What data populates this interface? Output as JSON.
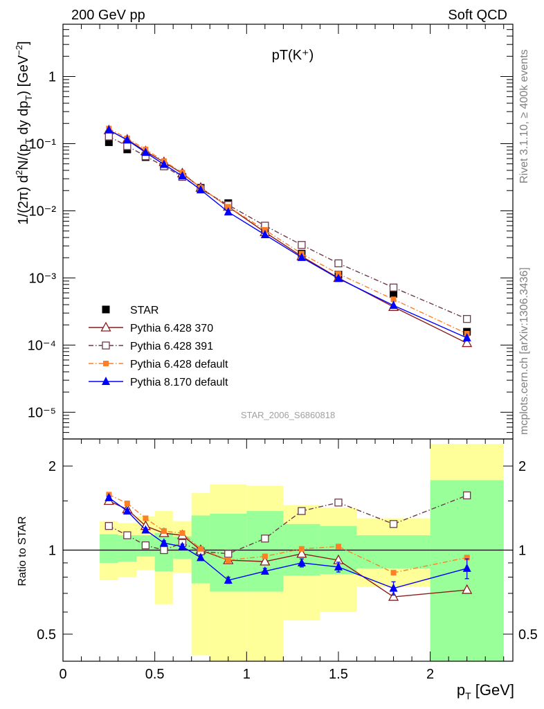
{
  "header": {
    "left": "200 GeV pp",
    "right": "Soft QCD"
  },
  "side": {
    "rivet": "Rivet 3.1.10, ≥ 400k events",
    "mcplots": "mcplots.cern.ch [arXiv:1306.3436]"
  },
  "colors": {
    "star": "#000000",
    "p370": "#8b1a1a",
    "p391": "#6b3a4a",
    "p6def": "#ff7f24",
    "p8def": "#0000ff",
    "band_yellow": "#ffff99",
    "band_green": "#99ff99"
  },
  "chart_data": [
    {
      "type": "scatter",
      "title": "pT(K⁺)",
      "watermark": "STAR_2006_S6860818",
      "ylabel": "1/(2π) d²N/(p_T dy dp_T) [GeV⁻²]",
      "yscale": "log",
      "ylim": [
        4e-06,
        6
      ],
      "xlim": [
        0,
        2.45
      ],
      "ytick_labels": [
        "10⁻⁵",
        "10⁻⁴",
        "10⁻³",
        "10⁻²",
        "10⁻¹",
        "1"
      ],
      "legend_position": "lower-left",
      "x": [
        0.25,
        0.35,
        0.45,
        0.55,
        0.65,
        0.75,
        0.9,
        1.1,
        1.3,
        1.5,
        1.8,
        2.2
      ],
      "series": [
        {
          "name": "STAR",
          "key": "star",
          "marker": "square-filled",
          "values": [
            0.105,
            0.082,
            0.063,
            0.046,
            0.032,
            0.022,
            0.013,
            0.0055,
            0.0023,
            0.00112,
            0.00058,
            0.000158
          ]
        },
        {
          "name": "Pythia 6.428 370",
          "key": "p370",
          "marker": "triangle-open",
          "line": "solid",
          "values": [
            0.158,
            0.115,
            0.077,
            0.053,
            0.036,
            0.022,
            0.0115,
            0.0048,
            0.0021,
            0.001,
            0.00037,
            0.000107
          ]
        },
        {
          "name": "Pythia 6.428 391",
          "key": "p391",
          "marker": "square-open",
          "line": "dashdot",
          "values": [
            0.128,
            0.092,
            0.065,
            0.046,
            0.032,
            0.021,
            0.0122,
            0.006,
            0.0031,
            0.00165,
            0.00072,
            0.000245
          ]
        },
        {
          "name": "Pythia 6.428 default",
          "key": "p6def",
          "marker": "square-filled-small",
          "line": "dashdot",
          "values": [
            0.168,
            0.12,
            0.082,
            0.055,
            0.037,
            0.022,
            0.0115,
            0.0052,
            0.0023,
            0.00115,
            0.00048,
            0.000148
          ]
        },
        {
          "name": "Pythia 8.170 default",
          "key": "p8def",
          "marker": "triangle-filled",
          "line": "solid",
          "values": [
            0.16,
            0.113,
            0.074,
            0.049,
            0.033,
            0.0205,
            0.0096,
            0.0044,
            0.00202,
            0.00098,
            0.00039,
            0.000128
          ]
        }
      ]
    },
    {
      "type": "line",
      "ylabel": "Ratio to STAR",
      "xlabel": "p_T [GeV]",
      "yscale": "log",
      "ylim": [
        0.4,
        2.5
      ],
      "xlim": [
        0,
        2.45
      ],
      "xtick_labels": [
        "0",
        "0.5",
        "1",
        "1.5",
        "2"
      ],
      "ytick_labels": [
        "0.5",
        "1",
        "2"
      ],
      "reference_line": 1,
      "bands": {
        "bins": [
          [
            0.2,
            0.3
          ],
          [
            0.3,
            0.4
          ],
          [
            0.4,
            0.5
          ],
          [
            0.5,
            0.6
          ],
          [
            0.6,
            0.7
          ],
          [
            0.7,
            0.8
          ],
          [
            0.8,
            1.0
          ],
          [
            1.0,
            1.2
          ],
          [
            1.2,
            1.4
          ],
          [
            1.4,
            1.6
          ],
          [
            1.6,
            2.0
          ],
          [
            2.0,
            2.4
          ]
        ],
        "yellow": [
          [
            0.78,
            1.27
          ],
          [
            0.8,
            1.25
          ],
          [
            0.85,
            1.32
          ],
          [
            0.64,
            1.38
          ],
          [
            0.83,
            1.27
          ],
          [
            0.42,
            1.6
          ],
          [
            0.28,
            1.72
          ],
          [
            0.28,
            1.7
          ],
          [
            0.56,
            1.45
          ],
          [
            0.6,
            1.42
          ],
          [
            0.74,
            1.3
          ],
          [
            0.28,
            2.4
          ]
        ],
        "green": [
          [
            0.9,
            1.14
          ],
          [
            0.91,
            1.13
          ],
          [
            0.95,
            1.13
          ],
          [
            0.84,
            1.15
          ],
          [
            0.93,
            1.12
          ],
          [
            0.76,
            1.33
          ],
          [
            0.71,
            1.35
          ],
          [
            0.71,
            1.38
          ],
          [
            0.81,
            1.24
          ],
          [
            0.82,
            1.22
          ],
          [
            0.86,
            1.13
          ],
          [
            0.28,
            1.78
          ]
        ]
      },
      "x": [
        0.25,
        0.35,
        0.45,
        0.55,
        0.65,
        0.75,
        0.9,
        1.1,
        1.3,
        1.5,
        1.8,
        2.2
      ],
      "series": [
        {
          "name": "Pythia 6.428 370",
          "key": "p370",
          "marker": "triangle-open",
          "line": "solid",
          "values": [
            1.5,
            1.4,
            1.22,
            1.15,
            1.13,
            1.0,
            0.92,
            0.91,
            0.97,
            0.92,
            0.68,
            0.72
          ]
        },
        {
          "name": "Pythia 6.428 391",
          "key": "p391",
          "marker": "square-open",
          "line": "dashdot",
          "values": [
            1.22,
            1.13,
            1.04,
            1.0,
            1.06,
            0.99,
            0.97,
            1.1,
            1.38,
            1.48,
            1.24,
            1.57
          ]
        },
        {
          "name": "Pythia 6.428 default",
          "key": "p6def",
          "marker": "square-filled-small",
          "line": "dashdot",
          "values": [
            1.58,
            1.47,
            1.3,
            1.17,
            1.15,
            1.01,
            0.92,
            0.95,
            1.01,
            1.03,
            0.83,
            0.94
          ]
        },
        {
          "name": "Pythia 8.170 default",
          "key": "p8def",
          "marker": "triangle-filled",
          "line": "solid",
          "values": [
            1.54,
            1.38,
            1.18,
            1.06,
            1.03,
            0.94,
            0.78,
            0.84,
            0.9,
            0.87,
            0.73,
            0.86
          ],
          "errors": [
            0.02,
            0.02,
            0.02,
            0.02,
            0.02,
            0.02,
            0.02,
            0.02,
            0.03,
            0.035,
            0.04,
            0.07
          ]
        }
      ]
    }
  ]
}
